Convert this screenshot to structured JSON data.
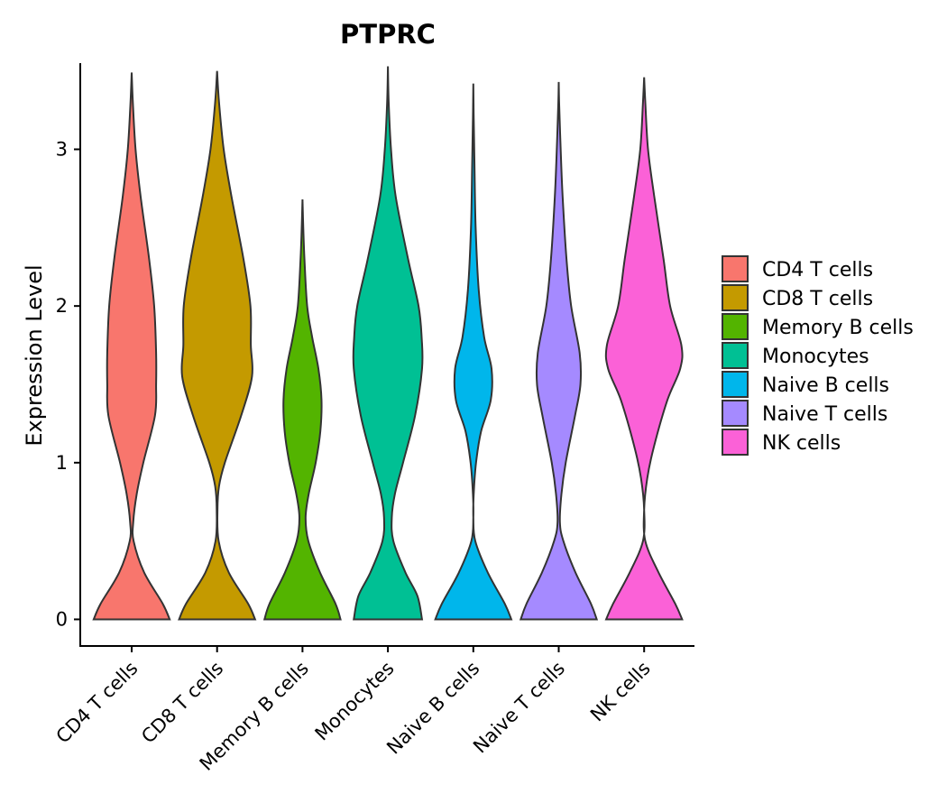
{
  "chart_data": {
    "type": "violin",
    "title": "PTPRC",
    "xlabel": "",
    "ylabel": "Expression Level",
    "ylim": [
      -0.17,
      3.55
    ],
    "yticks": [
      0,
      1,
      2,
      3
    ],
    "categories": [
      "CD4 T cells",
      "CD8 T cells",
      "Memory B cells",
      "Monocytes",
      "Naive B cells",
      "Naive T cells",
      "NK cells"
    ],
    "legend_position": "right",
    "series": [
      {
        "name": "CD4 T cells",
        "color": "#F8766D",
        "max": 3.49,
        "profile": [
          [
            0,
            0.98
          ],
          [
            0.1,
            0.8
          ],
          [
            0.3,
            0.32
          ],
          [
            0.5,
            0.05
          ],
          [
            0.62,
            0.04
          ],
          [
            0.8,
            0.13
          ],
          [
            1.0,
            0.3
          ],
          [
            1.3,
            0.6
          ],
          [
            1.5,
            0.63
          ],
          [
            1.7,
            0.63
          ],
          [
            2.0,
            0.58
          ],
          [
            2.3,
            0.45
          ],
          [
            2.7,
            0.23
          ],
          [
            3.0,
            0.1
          ],
          [
            3.3,
            0.03
          ],
          [
            3.49,
            0.0
          ]
        ]
      },
      {
        "name": "CD8 T cells",
        "color": "#C49A00",
        "max": 3.5,
        "profile": [
          [
            0,
            0.98
          ],
          [
            0.1,
            0.8
          ],
          [
            0.3,
            0.3
          ],
          [
            0.5,
            0.04
          ],
          [
            0.7,
            0.01
          ],
          [
            0.85,
            0.05
          ],
          [
            1.0,
            0.2
          ],
          [
            1.3,
            0.62
          ],
          [
            1.55,
            0.9
          ],
          [
            1.75,
            0.87
          ],
          [
            2.0,
            0.86
          ],
          [
            2.3,
            0.68
          ],
          [
            2.7,
            0.37
          ],
          [
            3.0,
            0.17
          ],
          [
            3.3,
            0.05
          ],
          [
            3.5,
            0.0
          ]
        ]
      },
      {
        "name": "Memory B cells",
        "color": "#53B400",
        "max": 2.68,
        "profile": [
          [
            0,
            0.98
          ],
          [
            0.1,
            0.85
          ],
          [
            0.3,
            0.45
          ],
          [
            0.5,
            0.15
          ],
          [
            0.65,
            0.08
          ],
          [
            0.8,
            0.16
          ],
          [
            1.0,
            0.34
          ],
          [
            1.2,
            0.46
          ],
          [
            1.4,
            0.49
          ],
          [
            1.6,
            0.41
          ],
          [
            1.8,
            0.25
          ],
          [
            2.0,
            0.12
          ],
          [
            2.3,
            0.05
          ],
          [
            2.5,
            0.02
          ],
          [
            2.68,
            0.0
          ]
        ]
      },
      {
        "name": "Monocytes",
        "color": "#00C094",
        "max": 3.53,
        "profile": [
          [
            0,
            0.88
          ],
          [
            0.15,
            0.76
          ],
          [
            0.3,
            0.45
          ],
          [
            0.5,
            0.14
          ],
          [
            0.65,
            0.1
          ],
          [
            0.8,
            0.18
          ],
          [
            1.0,
            0.39
          ],
          [
            1.3,
            0.7
          ],
          [
            1.6,
            0.88
          ],
          [
            1.8,
            0.87
          ],
          [
            2.0,
            0.79
          ],
          [
            2.3,
            0.52
          ],
          [
            2.7,
            0.2
          ],
          [
            3.0,
            0.08
          ],
          [
            3.3,
            0.02
          ],
          [
            3.53,
            0.0
          ]
        ]
      },
      {
        "name": "Naive B cells",
        "color": "#00B6EB",
        "max": 3.42,
        "profile": [
          [
            0,
            0.98
          ],
          [
            0.1,
            0.81
          ],
          [
            0.3,
            0.37
          ],
          [
            0.5,
            0.05
          ],
          [
            0.65,
            0.0
          ],
          [
            0.8,
            0.01
          ],
          [
            1.0,
            0.07
          ],
          [
            1.2,
            0.2
          ],
          [
            1.4,
            0.45
          ],
          [
            1.6,
            0.47
          ],
          [
            1.8,
            0.28
          ],
          [
            2.1,
            0.14
          ],
          [
            2.5,
            0.06
          ],
          [
            2.9,
            0.03
          ],
          [
            3.2,
            0.01
          ],
          [
            3.42,
            0.0
          ]
        ]
      },
      {
        "name": "Naive T cells",
        "color": "#A58AFF",
        "max": 3.43,
        "profile": [
          [
            0,
            0.98
          ],
          [
            0.1,
            0.83
          ],
          [
            0.3,
            0.43
          ],
          [
            0.5,
            0.12
          ],
          [
            0.62,
            0.03
          ],
          [
            0.8,
            0.07
          ],
          [
            1.0,
            0.18
          ],
          [
            1.3,
            0.42
          ],
          [
            1.5,
            0.56
          ],
          [
            1.7,
            0.54
          ],
          [
            2.0,
            0.32
          ],
          [
            2.3,
            0.2
          ],
          [
            2.7,
            0.1
          ],
          [
            3.0,
            0.05
          ],
          [
            3.3,
            0.01
          ],
          [
            3.43,
            0.0
          ]
        ]
      },
      {
        "name": "NK cells",
        "color": "#FB61D7",
        "max": 3.46,
        "profile": [
          [
            0,
            0.98
          ],
          [
            0.1,
            0.8
          ],
          [
            0.3,
            0.37
          ],
          [
            0.5,
            0.03
          ],
          [
            0.7,
            0.0
          ],
          [
            0.9,
            0.08
          ],
          [
            1.1,
            0.25
          ],
          [
            1.4,
            0.6
          ],
          [
            1.6,
            0.93
          ],
          [
            1.75,
            0.96
          ],
          [
            2.0,
            0.67
          ],
          [
            2.3,
            0.5
          ],
          [
            2.7,
            0.26
          ],
          [
            3.0,
            0.1
          ],
          [
            3.3,
            0.03
          ],
          [
            3.46,
            0.0
          ]
        ]
      }
    ]
  }
}
